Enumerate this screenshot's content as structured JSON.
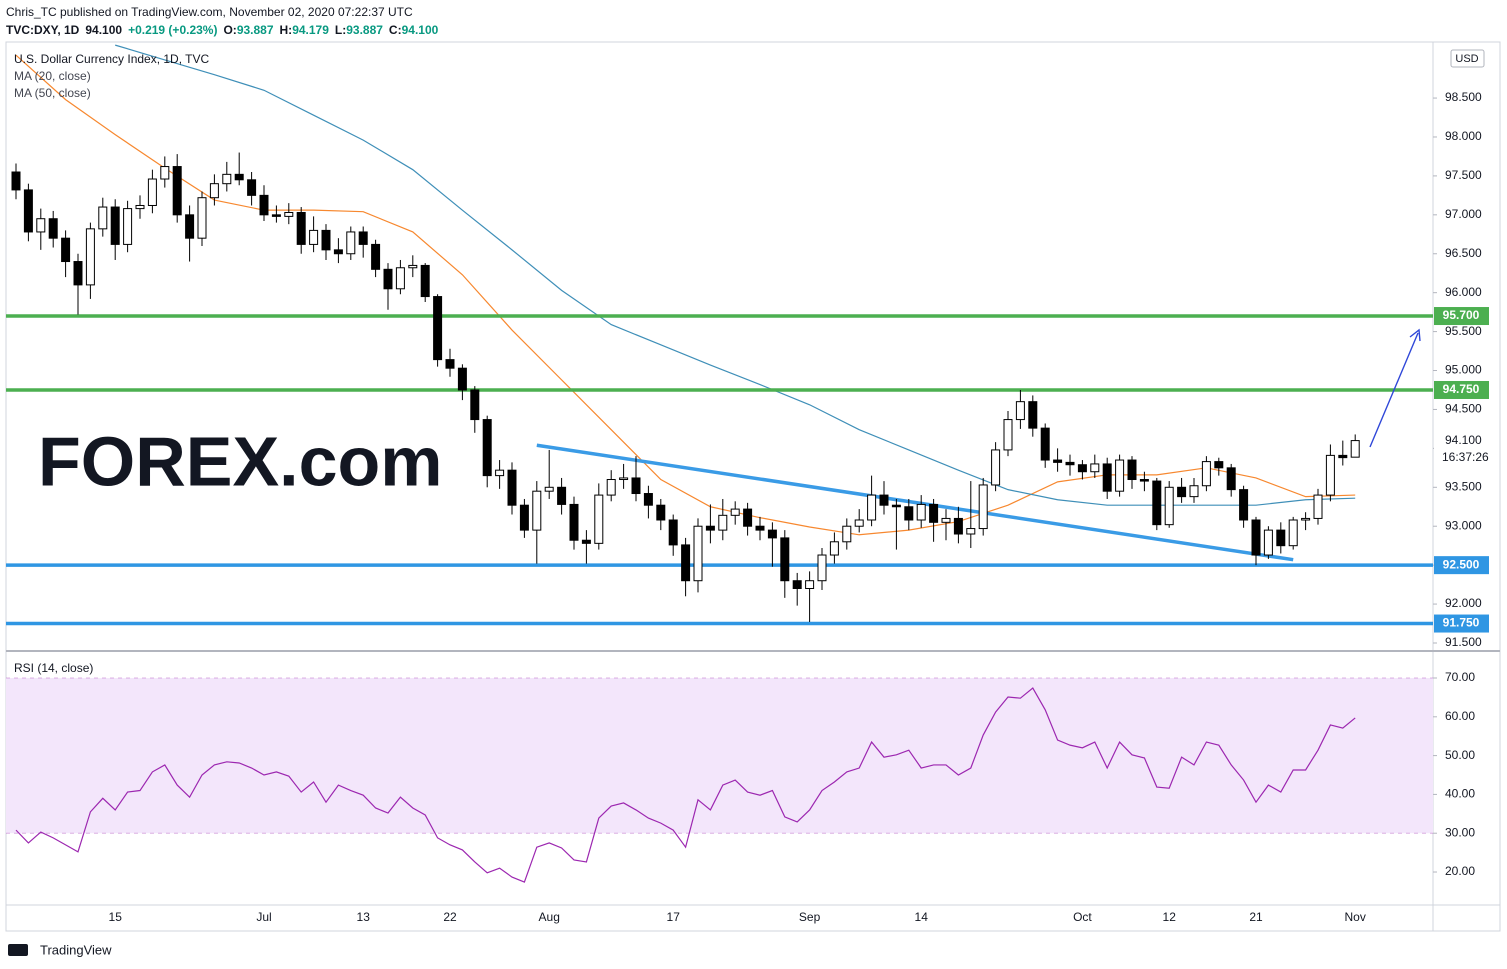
{
  "header": {
    "published": "Chris_TC published on TradingView.com, November 02, 2020 07:22:37 UTC",
    "symbol": "TVC:DXY, 1D",
    "price": "94.100",
    "change": "+0.219 (+0.23%)",
    "ohlc": [
      [
        "O:",
        "93.887"
      ],
      [
        "H:",
        "94.179"
      ],
      [
        "L:",
        "93.887"
      ],
      [
        "C:",
        "94.100"
      ]
    ]
  },
  "footer": "TradingView",
  "chart_data": {
    "type": "candlestick",
    "title": "U.S. Dollar Currency Index, 1D, TVC",
    "currency": "USD",
    "watermark": "FOREX.com",
    "last_label": "94.100",
    "countdown": "16:37:26",
    "colors": {
      "up": "#ffffff",
      "down": "#000000",
      "wick": "#000000"
    },
    "x": [
      "2020-06-03",
      "2020-06-04",
      "2020-06-05",
      "2020-06-08",
      "2020-06-09",
      "2020-06-10",
      "2020-06-11",
      "2020-06-12",
      "2020-06-15",
      "2020-06-16",
      "2020-06-17",
      "2020-06-18",
      "2020-06-19",
      "2020-06-22",
      "2020-06-23",
      "2020-06-24",
      "2020-06-25",
      "2020-06-26",
      "2020-06-29",
      "2020-06-30",
      "2020-07-01",
      "2020-07-02",
      "2020-07-03",
      "2020-07-06",
      "2020-07-07",
      "2020-07-08",
      "2020-07-09",
      "2020-07-10",
      "2020-07-13",
      "2020-07-14",
      "2020-07-15",
      "2020-07-16",
      "2020-07-17",
      "2020-07-20",
      "2020-07-21",
      "2020-07-22",
      "2020-07-23",
      "2020-07-24",
      "2020-07-27",
      "2020-07-28",
      "2020-07-29",
      "2020-07-30",
      "2020-07-31",
      "2020-08-03",
      "2020-08-04",
      "2020-08-05",
      "2020-08-06",
      "2020-08-07",
      "2020-08-10",
      "2020-08-11",
      "2020-08-12",
      "2020-08-13",
      "2020-08-14",
      "2020-08-17",
      "2020-08-18",
      "2020-08-19",
      "2020-08-20",
      "2020-08-21",
      "2020-08-24",
      "2020-08-25",
      "2020-08-26",
      "2020-08-27",
      "2020-08-28",
      "2020-08-31",
      "2020-09-01",
      "2020-09-02",
      "2020-09-03",
      "2020-09-04",
      "2020-09-07",
      "2020-09-08",
      "2020-09-09",
      "2020-09-10",
      "2020-09-11",
      "2020-09-14",
      "2020-09-15",
      "2020-09-16",
      "2020-09-17",
      "2020-09-18",
      "2020-09-21",
      "2020-09-22",
      "2020-09-23",
      "2020-09-24",
      "2020-09-25",
      "2020-09-28",
      "2020-09-29",
      "2020-09-30",
      "2020-10-01",
      "2020-10-02",
      "2020-10-05",
      "2020-10-06",
      "2020-10-07",
      "2020-10-08",
      "2020-10-09",
      "2020-10-12",
      "2020-10-13",
      "2020-10-14",
      "2020-10-15",
      "2020-10-16",
      "2020-10-19",
      "2020-10-20",
      "2020-10-21",
      "2020-10-22",
      "2020-10-23",
      "2020-10-26",
      "2020-10-27",
      "2020-10-28",
      "2020-10-29",
      "2020-10-30",
      "2020-11-02"
    ],
    "open": [
      97.55,
      97.32,
      96.78,
      96.95,
      96.7,
      96.4,
      96.1,
      96.82,
      97.1,
      96.62,
      97.08,
      97.12,
      97.46,
      97.62,
      97.0,
      96.7,
      97.22,
      97.4,
      97.52,
      97.45,
      97.25,
      97.0,
      96.98,
      97.03,
      96.62,
      96.8,
      96.55,
      96.5,
      96.78,
      96.62,
      96.3,
      96.05,
      96.32,
      96.35,
      95.95,
      95.14,
      95.03,
      94.75,
      94.37,
      93.65,
      93.72,
      93.27,
      92.95,
      93.45,
      93.5,
      93.28,
      92.82,
      92.78,
      93.4,
      93.6,
      93.62,
      93.42,
      93.27,
      93.08,
      92.76,
      92.3,
      93.0,
      92.95,
      93.14,
      93.22,
      93.0,
      92.95,
      92.85,
      92.3,
      92.2,
      92.3,
      92.63,
      92.8,
      93.0,
      93.08,
      93.4,
      93.27,
      93.25,
      93.08,
      93.28,
      93.05,
      93.1,
      92.9,
      92.97,
      93.53,
      93.98,
      94.37,
      94.6,
      94.26,
      93.85,
      93.82,
      93.79,
      93.7,
      93.8,
      93.45,
      93.85,
      93.6,
      93.58,
      93.02,
      93.5,
      93.38,
      93.52,
      93.83,
      93.75,
      93.47,
      93.08,
      92.63,
      92.95,
      92.75,
      93.08,
      93.1,
      93.4,
      93.91,
      93.887
    ],
    "high": [
      97.66,
      97.4,
      97.08,
      97.05,
      96.8,
      96.5,
      96.9,
      97.22,
      97.2,
      97.18,
      97.25,
      97.58,
      97.75,
      97.78,
      97.12,
      97.3,
      97.52,
      97.68,
      97.8,
      97.55,
      97.38,
      97.12,
      97.15,
      97.1,
      96.98,
      96.88,
      96.7,
      96.85,
      96.85,
      96.68,
      96.38,
      96.42,
      96.48,
      96.38,
      95.98,
      95.28,
      95.08,
      94.8,
      94.42,
      93.85,
      93.82,
      93.35,
      93.58,
      93.98,
      93.62,
      93.38,
      92.95,
      93.55,
      93.72,
      93.8,
      93.9,
      93.52,
      93.35,
      93.15,
      92.85,
      93.1,
      93.28,
      93.35,
      93.32,
      93.3,
      93.12,
      93.05,
      92.95,
      92.4,
      92.42,
      92.72,
      92.92,
      93.1,
      93.22,
      93.65,
      93.58,
      93.35,
      93.35,
      93.4,
      93.35,
      93.22,
      93.25,
      93.58,
      93.62,
      94.08,
      94.48,
      94.75,
      94.68,
      94.32,
      94.0,
      93.92,
      93.85,
      93.92,
      93.88,
      93.92,
      93.9,
      93.7,
      93.62,
      93.58,
      93.62,
      93.62,
      93.9,
      93.88,
      93.8,
      93.52,
      93.12,
      93.0,
      93.05,
      93.12,
      93.18,
      93.48,
      94.05,
      94.1,
      94.179
    ],
    "low": [
      97.2,
      96.66,
      96.55,
      96.58,
      96.2,
      95.72,
      95.92,
      96.72,
      96.42,
      96.52,
      96.95,
      97.02,
      97.35,
      96.9,
      96.4,
      96.6,
      97.12,
      97.3,
      97.38,
      97.12,
      96.92,
      96.9,
      96.88,
      96.5,
      96.52,
      96.42,
      96.38,
      96.42,
      96.45,
      96.2,
      95.78,
      95.98,
      96.2,
      95.88,
      95.05,
      94.92,
      94.62,
      94.2,
      93.5,
      93.48,
      93.15,
      92.85,
      92.52,
      93.35,
      93.15,
      92.7,
      92.52,
      92.7,
      93.32,
      93.48,
      93.32,
      93.1,
      92.95,
      92.62,
      92.1,
      92.15,
      92.78,
      92.82,
      93.02,
      92.88,
      92.82,
      92.48,
      92.08,
      91.98,
      91.77,
      92.18,
      92.52,
      92.7,
      92.92,
      93.0,
      93.15,
      92.7,
      92.95,
      92.98,
      92.8,
      92.82,
      92.78,
      92.72,
      92.88,
      93.45,
      93.9,
      94.25,
      94.15,
      93.75,
      93.7,
      93.65,
      93.6,
      93.62,
      93.35,
      93.38,
      93.48,
      93.45,
      92.95,
      92.98,
      93.3,
      93.3,
      93.45,
      93.65,
      93.38,
      92.98,
      92.5,
      92.58,
      92.65,
      92.7,
      92.95,
      93.02,
      93.32,
      93.78,
      93.887
    ],
    "close": [
      97.32,
      96.78,
      96.95,
      96.7,
      96.4,
      96.1,
      96.82,
      97.1,
      96.62,
      97.08,
      97.12,
      97.46,
      97.62,
      97.0,
      96.7,
      97.22,
      97.4,
      97.52,
      97.45,
      97.25,
      97.0,
      96.98,
      97.03,
      96.62,
      96.8,
      96.55,
      96.5,
      96.78,
      96.62,
      96.3,
      96.05,
      96.32,
      96.35,
      95.95,
      95.14,
      95.03,
      94.75,
      94.37,
      93.65,
      93.72,
      93.27,
      92.95,
      93.45,
      93.5,
      93.28,
      92.82,
      92.78,
      93.4,
      93.6,
      93.62,
      93.42,
      93.27,
      93.08,
      92.76,
      92.3,
      93.0,
      92.95,
      93.14,
      93.22,
      93.0,
      92.95,
      92.85,
      92.3,
      92.2,
      92.3,
      92.63,
      92.8,
      93.0,
      93.08,
      93.4,
      93.27,
      93.25,
      93.08,
      93.28,
      93.05,
      93.1,
      92.9,
      92.97,
      93.53,
      93.98,
      94.37,
      94.6,
      94.26,
      93.85,
      93.82,
      93.79,
      93.7,
      93.8,
      93.45,
      93.85,
      93.6,
      93.58,
      93.02,
      93.5,
      93.38,
      93.52,
      93.83,
      93.75,
      93.47,
      93.08,
      92.63,
      92.95,
      92.75,
      93.08,
      93.1,
      93.4,
      93.91,
      93.881,
      94.1
    ],
    "series": [
      {
        "name": "MA (20, close)",
        "color": "#f7882f",
        "x": [
          "2020-06-03",
          "2020-06-09",
          "2020-06-15",
          "2020-06-19",
          "2020-06-25",
          "2020-07-01",
          "2020-07-07",
          "2020-07-13",
          "2020-07-17",
          "2020-07-23",
          "2020-07-29",
          "2020-08-04",
          "2020-08-10",
          "2020-08-14",
          "2020-08-20",
          "2020-08-26",
          "2020-09-01",
          "2020-09-07",
          "2020-09-11",
          "2020-09-17",
          "2020-09-23",
          "2020-09-29",
          "2020-10-05",
          "2020-10-09",
          "2020-10-15",
          "2020-10-21",
          "2020-10-27",
          "2020-11-02"
        ],
        "values": [
          99.05,
          98.48,
          98.03,
          97.6,
          97.19,
          97.06,
          97.06,
          97.04,
          96.78,
          96.23,
          95.52,
          94.88,
          94.24,
          93.6,
          93.25,
          93.11,
          92.99,
          92.89,
          92.95,
          93.06,
          93.27,
          93.57,
          93.66,
          93.66,
          93.75,
          93.62,
          93.38,
          93.4
        ]
      },
      {
        "name": "MA (50, close)",
        "color": "#3f8fb8",
        "x": [
          "2020-06-03",
          "2020-06-09",
          "2020-06-15",
          "2020-06-19",
          "2020-06-25",
          "2020-07-01",
          "2020-07-07",
          "2020-07-13",
          "2020-07-17",
          "2020-07-23",
          "2020-07-29",
          "2020-08-04",
          "2020-08-10",
          "2020-08-14",
          "2020-08-20",
          "2020-08-26",
          "2020-09-01",
          "2020-09-07",
          "2020-09-11",
          "2020-09-17",
          "2020-09-23",
          "2020-09-29",
          "2020-10-05",
          "2020-10-09",
          "2020-10-15",
          "2020-10-21",
          "2020-10-27",
          "2020-11-02"
        ],
        "values": [
          null,
          null,
          99.18,
          98.99,
          98.8,
          98.6,
          98.28,
          97.96,
          97.58,
          97.06,
          96.55,
          96.03,
          95.59,
          95.33,
          95.07,
          94.82,
          94.56,
          94.24,
          93.98,
          93.72,
          93.47,
          93.34,
          93.27,
          93.27,
          93.27,
          93.27,
          93.34,
          93.36
        ]
      }
    ],
    "levels": [
      {
        "value": 95.7,
        "label": "95.700",
        "color": "#4caf50"
      },
      {
        "value": 94.75,
        "label": "94.750",
        "color": "#4caf50"
      },
      {
        "value": 92.5,
        "label": "92.500",
        "color": "#2f96e3"
      },
      {
        "value": 91.75,
        "label": "91.750",
        "color": "#2f96e3"
      }
    ],
    "trendline": {
      "x": [
        "2020-07-31",
        "2020-10-26"
      ],
      "values": [
        94.04,
        92.57
      ],
      "color": "#3a9be6"
    },
    "ylim": [
      91.41,
      99.22
    ],
    "yticks": [
      {
        "value": 91.5,
        "label": "91.500"
      },
      {
        "value": 92,
        "label": "92.000"
      },
      {
        "value": 92.5,
        "label": "92.500"
      },
      {
        "value": 93,
        "label": "93.000"
      },
      {
        "value": 93.5,
        "label": "93.500"
      },
      {
        "value": 94,
        "label": "94.000"
      },
      {
        "value": 94.5,
        "label": "94.500"
      },
      {
        "value": 95,
        "label": "95.000"
      },
      {
        "value": 95.5,
        "label": "95.500"
      },
      {
        "value": 96,
        "label": "96.000"
      },
      {
        "value": 96.5,
        "label": "96.500"
      },
      {
        "value": 97,
        "label": "97.000"
      },
      {
        "value": 97.5,
        "label": "97.500"
      },
      {
        "value": 98,
        "label": "98.000"
      },
      {
        "value": 98.5,
        "label": "98.500"
      }
    ],
    "xticks": [
      {
        "value": "2020-06-15",
        "label": "15"
      },
      {
        "value": "2020-07-01",
        "label": "Jul"
      },
      {
        "value": "2020-07-13",
        "label": "13"
      },
      {
        "value": "2020-07-22",
        "label": "22"
      },
      {
        "value": "2020-08-03",
        "label": "Aug"
      },
      {
        "value": "2020-08-17",
        "label": "17"
      },
      {
        "value": "2020-09-01",
        "label": "Sep"
      },
      {
        "value": "2020-09-14",
        "label": "14"
      },
      {
        "value": "2020-10-01",
        "label": "Oct"
      },
      {
        "value": "2020-10-12",
        "label": "12"
      },
      {
        "value": "2020-10-21",
        "label": "21"
      },
      {
        "value": "2020-11-02",
        "label": "Nov"
      }
    ],
    "rsi": {
      "title": "RSI (14, close)",
      "color": "#9c27b0",
      "band": [
        30,
        70
      ],
      "band_color": "#f3e6fb",
      "ylim": [
        11.5,
        76.7
      ],
      "yticks": [
        {
          "value": 20,
          "label": "20.00"
        },
        {
          "value": 30,
          "label": "30.00"
        },
        {
          "value": 40,
          "label": "40.00"
        },
        {
          "value": 50,
          "label": "50.00"
        },
        {
          "value": 60,
          "label": "60.00"
        },
        {
          "value": 70,
          "label": "70.00"
        }
      ],
      "values": [
        30.8,
        27.5,
        30.3,
        28.8,
        27,
        25.2,
        35.5,
        39,
        36,
        40.6,
        41,
        45.8,
        47.6,
        42.4,
        39.3,
        45,
        47.6,
        48.4,
        48.1,
        46.8,
        45,
        45.8,
        44.7,
        40.6,
        43.2,
        38,
        42.4,
        41,
        39.8,
        36.5,
        35.2,
        39.3,
        36.5,
        34.7,
        28.8,
        27,
        25.7,
        22.6,
        19.8,
        21,
        18.7,
        17.4,
        26.4,
        27.5,
        26.2,
        23.1,
        22.6,
        33.9,
        37,
        37.8,
        36,
        33.9,
        32.6,
        30.8,
        26.4,
        38.6,
        36,
        42.4,
        43.7,
        40.6,
        39.8,
        41,
        34.2,
        32.9,
        36,
        41,
        43.2,
        45.8,
        46.8,
        53.5,
        49.6,
        50.2,
        51.4,
        46.8,
        47.6,
        47.6,
        45,
        46.8,
        55.3,
        61.2,
        65.1,
        64.8,
        67.4,
        61.8,
        54,
        52.7,
        52,
        53.5,
        46.8,
        53.5,
        50.2,
        49.4,
        41.9,
        41.6,
        49.6,
        47.6,
        53.5,
        52.7,
        47.6,
        43.7,
        38,
        42.4,
        40.6,
        46.3,
        46.3,
        51.4,
        57.9,
        57.1,
        59.7
      ]
    }
  }
}
